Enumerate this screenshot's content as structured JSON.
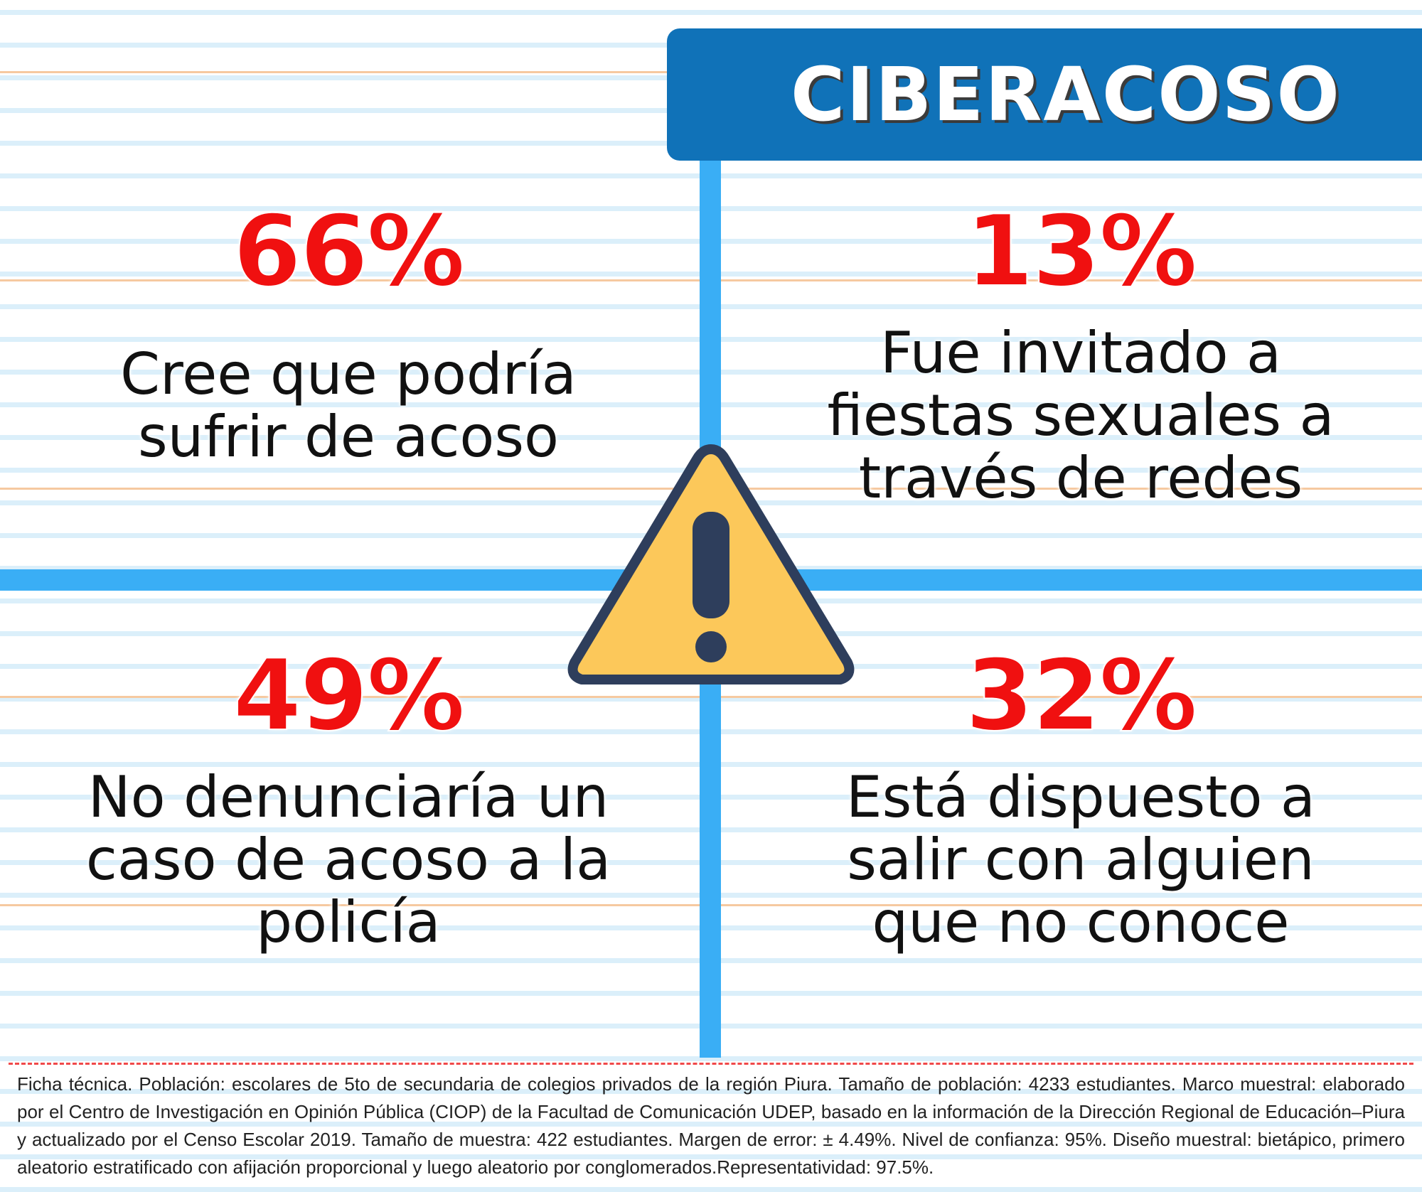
{
  "title": "CIBERACOSO",
  "colors": {
    "title_bg": "#1072b8",
    "divider": "#3aaef5",
    "percent": "#f01010",
    "warning_fill": "#fcc85a",
    "warning_outline": "#2e3e5c"
  },
  "stats": [
    {
      "value": "66%",
      "lines": [
        "Cree que podría",
        "sufrir de acoso"
      ]
    },
    {
      "value": "13%",
      "lines": [
        "Fue invitado a",
        "fiestas sexuales a",
        "través de redes"
      ]
    },
    {
      "value": "49%",
      "lines": [
        "No denunciaría un",
        "caso de acoso a la",
        "policía"
      ]
    },
    {
      "value": "32%",
      "lines": [
        "Está dispuesto a",
        "salir con alguien",
        "que no conoce"
      ]
    }
  ],
  "center_icon": "warning-triangle-icon",
  "footnote": "Ficha técnica. Población: escolares de 5to de secundaria de colegios privados de la región Piura. Tamaño de población: 4233 estudiantes. Marco muestral: elaborado por el Centro de Investigación en Opinión Pública (CIOP) de la Facultad de Comunicación UDEP, basado en la información de la Dirección Regional de Educación–Piura y actualizado por el Censo Escolar 2019. Tamaño de muestra: 422 estudiantes. Margen de error: ± 4.49%. Nivel de confianza: 95%. Diseño muestral: bietápico, primero aleatorio estratificado con afijación proporcional y luego aleatorio por conglomerados.Representatividad: 97.5%."
}
